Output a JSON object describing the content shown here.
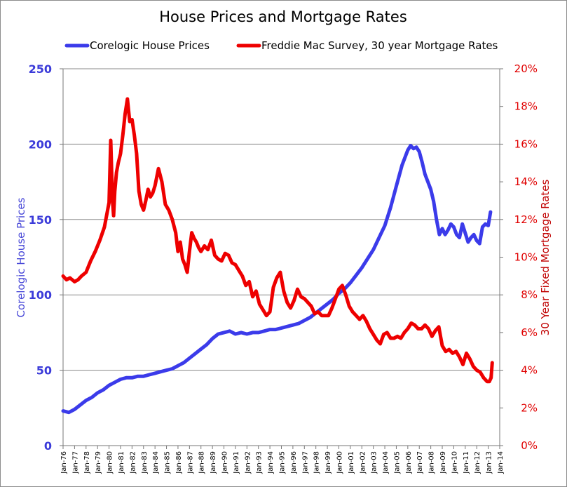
{
  "chart_data": {
    "type": "line",
    "title": "House Prices and Mortgage Rates",
    "ylabel_left": "Corelogic House Prices",
    "ylabel_right": "30 Year Fixed Mortgage Rates",
    "ylim_left": [
      0,
      250
    ],
    "ylim_right": [
      0,
      20
    ],
    "yticks_left": [
      "0",
      "50",
      "100",
      "150",
      "200",
      "250"
    ],
    "yticks_right": [
      "0%",
      "2%",
      "4%",
      "6%",
      "8%",
      "10%",
      "12%",
      "14%",
      "16%",
      "18%",
      "20%"
    ],
    "xlim": [
      1976.0,
      2014.0
    ],
    "x_tick_labels": [
      "Jan-76",
      "Jan-77",
      "Jan-78",
      "Jan-79",
      "Jan-80",
      "Jan-81",
      "Jan-82",
      "Jan-83",
      "Jan-84",
      "Jan-85",
      "Jan-86",
      "Jan-87",
      "Jan-88",
      "Jan-89",
      "Jan-90",
      "Jan-91",
      "Jan-92",
      "Jan-93",
      "Jan-94",
      "Jan-95",
      "Jan-96",
      "Jan-97",
      "Jan-98",
      "Jan-99",
      "Jan-00",
      "Jan-01",
      "Jan-02",
      "Jan-03",
      "Jan-04",
      "Jan-05",
      "Jan-06",
      "Jan-07",
      "Jan-08",
      "Jan-09",
      "Jan-10",
      "Jan-11",
      "Jan-12",
      "Jan-13",
      "Jan-14"
    ],
    "grid": true,
    "legend_position": "top",
    "series": [
      {
        "name": "Corelogic House Prices",
        "axis": "left",
        "color": "#3b3bea",
        "x": [
          1976.0,
          1976.5,
          1977.0,
          1977.5,
          1978.0,
          1978.5,
          1979.0,
          1979.5,
          1980.0,
          1980.5,
          1981.0,
          1981.5,
          1982.0,
          1982.5,
          1983.0,
          1983.5,
          1984.0,
          1984.5,
          1985.0,
          1985.5,
          1986.0,
          1986.5,
          1987.0,
          1987.5,
          1988.0,
          1988.5,
          1989.0,
          1989.5,
          1990.0,
          1990.5,
          1991.0,
          1991.5,
          1992.0,
          1992.5,
          1993.0,
          1993.5,
          1994.0,
          1994.5,
          1995.0,
          1995.5,
          1996.0,
          1996.5,
          1997.0,
          1997.5,
          1998.0,
          1998.5,
          1999.0,
          1999.5,
          2000.0,
          2000.5,
          2001.0,
          2001.5,
          2002.0,
          2002.5,
          2003.0,
          2003.5,
          2004.0,
          2004.5,
          2005.0,
          2005.5,
          2006.0,
          2006.25,
          2006.5,
          2006.75,
          2007.0,
          2007.25,
          2007.5,
          2008.0,
          2008.25,
          2008.5,
          2008.75,
          2009.0,
          2009.25,
          2009.5,
          2009.75,
          2010.0,
          2010.25,
          2010.5,
          2010.75,
          2011.0,
          2011.25,
          2011.5,
          2011.75,
          2012.0,
          2012.25,
          2012.5,
          2012.75,
          2013.0,
          2013.2
        ],
        "values": [
          23,
          22,
          24,
          27,
          30,
          32,
          35,
          37,
          40,
          42,
          44,
          45,
          45,
          46,
          46,
          47,
          48,
          49,
          50,
          51,
          53,
          55,
          58,
          61,
          64,
          67,
          71,
          74,
          75,
          76,
          74,
          75,
          74,
          75,
          75,
          76,
          77,
          77,
          78,
          79,
          80,
          81,
          83,
          85,
          88,
          91,
          94,
          97,
          101,
          104,
          108,
          113,
          118,
          124,
          130,
          138,
          146,
          158,
          172,
          186,
          196,
          199,
          197,
          198,
          195,
          188,
          180,
          170,
          162,
          150,
          140,
          144,
          140,
          143,
          147,
          145,
          140,
          138,
          147,
          141,
          135,
          138,
          140,
          136,
          134,
          145,
          147,
          146,
          155
        ]
      },
      {
        "name": "Freddie Mac Survey, 30 year Mortgage Rates",
        "axis": "right",
        "color": "#ee0000",
        "x": [
          1976.0,
          1976.3,
          1976.6,
          1977.0,
          1977.3,
          1977.6,
          1978.0,
          1978.4,
          1978.8,
          1979.2,
          1979.6,
          1980.0,
          1980.15,
          1980.3,
          1980.4,
          1980.5,
          1980.65,
          1980.8,
          1981.0,
          1981.2,
          1981.4,
          1981.6,
          1981.8,
          1982.0,
          1982.2,
          1982.4,
          1982.6,
          1982.8,
          1983.0,
          1983.2,
          1983.4,
          1983.6,
          1983.8,
          1984.0,
          1984.3,
          1984.6,
          1984.9,
          1985.2,
          1985.5,
          1985.8,
          1986.0,
          1986.2,
          1986.4,
          1986.6,
          1986.8,
          1987.0,
          1987.2,
          1987.4,
          1987.6,
          1987.8,
          1988.0,
          1988.3,
          1988.6,
          1988.9,
          1989.2,
          1989.5,
          1989.8,
          1990.1,
          1990.4,
          1990.7,
          1991.0,
          1991.3,
          1991.6,
          1991.9,
          1992.2,
          1992.5,
          1992.8,
          1993.1,
          1993.4,
          1993.7,
          1994.0,
          1994.3,
          1994.6,
          1994.9,
          1995.2,
          1995.5,
          1995.8,
          1996.1,
          1996.4,
          1996.7,
          1997.0,
          1997.3,
          1997.6,
          1997.9,
          1998.2,
          1998.5,
          1998.8,
          1999.1,
          1999.4,
          1999.7,
          2000.0,
          2000.3,
          2000.6,
          2000.9,
          2001.2,
          2001.5,
          2001.8,
          2002.1,
          2002.4,
          2002.7,
          2003.0,
          2003.3,
          2003.6,
          2003.9,
          2004.2,
          2004.5,
          2004.8,
          2005.1,
          2005.4,
          2005.7,
          2006.0,
          2006.3,
          2006.6,
          2006.9,
          2007.2,
          2007.5,
          2007.8,
          2008.1,
          2008.4,
          2008.7,
          2009.0,
          2009.3,
          2009.6,
          2009.9,
          2010.2,
          2010.5,
          2010.8,
          2011.1,
          2011.4,
          2011.7,
          2012.0,
          2012.3,
          2012.6,
          2012.9,
          2013.1,
          2013.25,
          2013.35
        ],
        "values": [
          9.0,
          8.8,
          8.9,
          8.7,
          8.8,
          9.0,
          9.2,
          9.8,
          10.3,
          10.9,
          11.6,
          12.9,
          16.2,
          13.0,
          12.2,
          13.5,
          14.5,
          15.0,
          15.5,
          16.5,
          17.6,
          18.4,
          17.2,
          17.3,
          16.5,
          15.5,
          13.5,
          12.8,
          12.5,
          13.0,
          13.6,
          13.2,
          13.4,
          13.8,
          14.7,
          14.0,
          12.8,
          12.5,
          12.0,
          11.3,
          10.3,
          10.8,
          9.9,
          9.6,
          9.2,
          10.3,
          11.3,
          11.0,
          10.8,
          10.5,
          10.3,
          10.6,
          10.4,
          10.9,
          10.1,
          9.9,
          9.8,
          10.2,
          10.1,
          9.7,
          9.6,
          9.3,
          9.0,
          8.5,
          8.7,
          7.9,
          8.2,
          7.5,
          7.2,
          6.9,
          7.1,
          8.4,
          8.9,
          9.2,
          8.2,
          7.6,
          7.3,
          7.7,
          8.3,
          7.9,
          7.8,
          7.6,
          7.4,
          7.0,
          7.1,
          6.9,
          6.9,
          6.9,
          7.3,
          7.8,
          8.3,
          8.5,
          8.0,
          7.4,
          7.1,
          6.9,
          6.7,
          6.9,
          6.6,
          6.2,
          5.9,
          5.6,
          5.4,
          5.9,
          6.0,
          5.7,
          5.7,
          5.8,
          5.7,
          6.0,
          6.2,
          6.5,
          6.4,
          6.2,
          6.2,
          6.4,
          6.2,
          5.8,
          6.1,
          6.3,
          5.3,
          5.0,
          5.1,
          4.9,
          5.0,
          4.7,
          4.3,
          4.9,
          4.6,
          4.2,
          4.0,
          3.9,
          3.6,
          3.4,
          3.4,
          3.6,
          4.4
        ]
      }
    ]
  }
}
